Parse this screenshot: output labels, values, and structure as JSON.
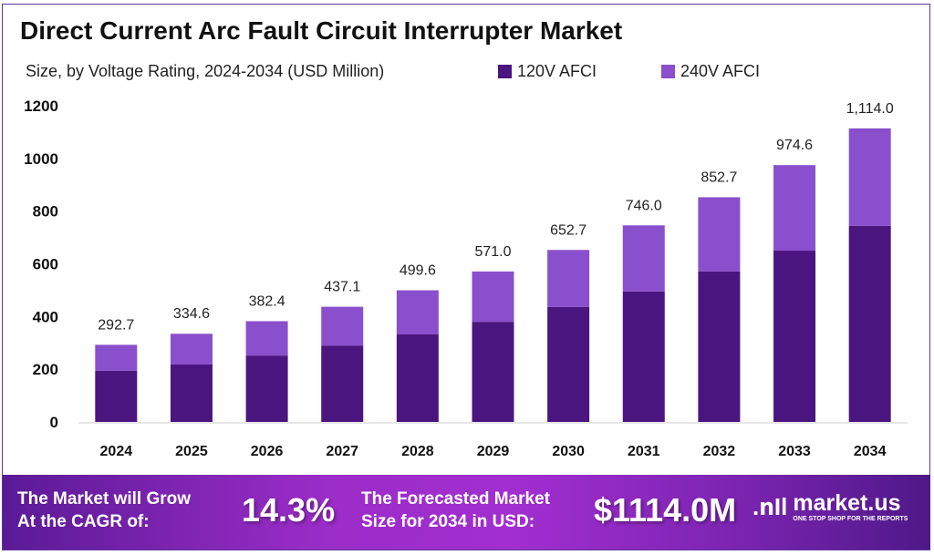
{
  "header": {
    "title": "Direct Current Arc Fault Circuit Interrupter Market",
    "subtitle": "Size, by Voltage Rating, 2024-2034 (USD Million)"
  },
  "chart_data": {
    "type": "bar",
    "stacked": true,
    "title": "Direct Current Arc Fault Circuit Interrupter Market",
    "subtitle": "Size, by Voltage Rating, 2024-2034 (USD Million)",
    "categories": [
      "2024",
      "2025",
      "2026",
      "2027",
      "2028",
      "2029",
      "2030",
      "2031",
      "2032",
      "2033",
      "2034"
    ],
    "series": [
      {
        "name": "120V AFCI",
        "color": "#4b1580",
        "values": [
          194,
          218,
          252,
          290,
          332,
          380,
          436,
          495,
          571,
          650,
          744
        ]
      },
      {
        "name": "240V AFCI",
        "color": "#8a4fcc",
        "values": [
          98.7,
          116.6,
          130.4,
          147.1,
          167.6,
          191.0,
          216.7,
          251.0,
          281.7,
          324.6,
          370.0
        ]
      }
    ],
    "totals": [
      292.7,
      334.6,
      382.4,
      437.1,
      499.6,
      571.0,
      652.7,
      746.0,
      852.7,
      974.6,
      1114.0
    ],
    "total_labels": [
      "292.7",
      "334.6",
      "382.4",
      "437.1",
      "499.6",
      "571.0",
      "652.7",
      "746.0",
      "852.7",
      "974.6",
      "1,114.0"
    ],
    "yticks": [
      "0",
      "200",
      "400",
      "600",
      "800",
      "1000",
      "1200"
    ],
    "ylim": [
      0,
      1200
    ],
    "grid": false,
    "legend": "top"
  },
  "footer": {
    "cagr_text_1": "The Market will Grow",
    "cagr_text_2": "At the CAGR of:",
    "cagr_value": "14.3%",
    "forecast_text_1": "The Forecasted Market",
    "forecast_text_2": "Size for 2034 in USD:",
    "forecast_value": "$1114.0M",
    "logo_name": "market.us",
    "logo_tagline": "ONE STOP SHOP FOR THE REPORTS"
  }
}
